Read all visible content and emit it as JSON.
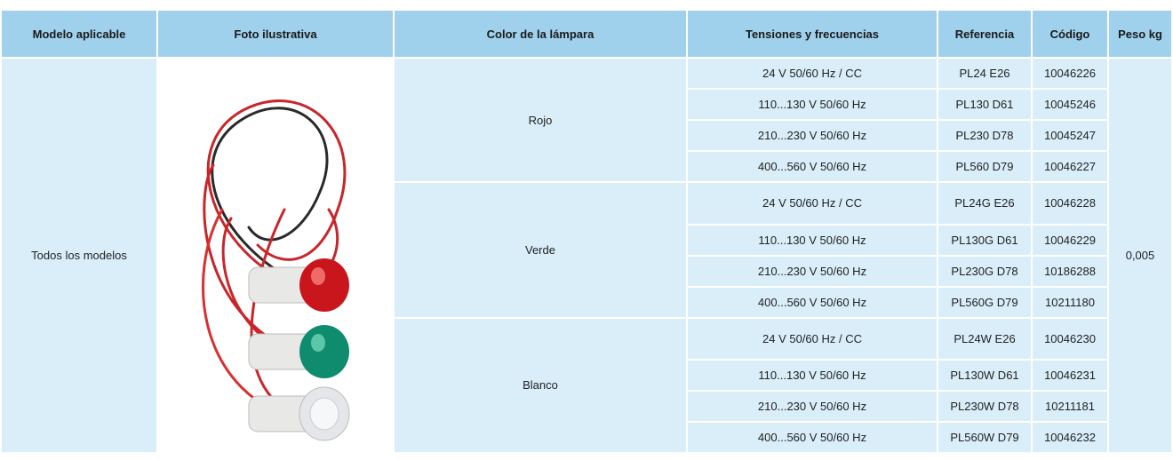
{
  "table": {
    "headers": [
      "Modelo aplicable",
      "Foto ilustrativa",
      "Color de la lámpara",
      "Tensiones y frecuencias",
      "Referencia",
      "Código",
      "Peso kg"
    ],
    "model": "Todos los modelos",
    "weight": "0,005",
    "groups": [
      {
        "color": "Rojo",
        "rows": [
          [
            "24 V 50/60 Hz / CC",
            "PL24 E26",
            "10046226"
          ],
          [
            "110...130 V 50/60 Hz",
            "PL130 D61",
            "10045246"
          ],
          [
            "210...230 V 50/60 Hz",
            "PL230 D78",
            "10045247"
          ],
          [
            "400...560 V 50/60 Hz",
            "PL560 D79",
            "10046227"
          ]
        ]
      },
      {
        "color": "Verde",
        "rows": [
          [
            "24 V 50/60 Hz / CC",
            "PL24G E26",
            "10046228"
          ],
          [
            "110...130 V 50/60 Hz",
            "PL130G D61",
            "10046229"
          ],
          [
            "210...230 V 50/60 Hz",
            "PL230G D78",
            "10186288"
          ],
          [
            "400...560 V 50/60 Hz",
            "PL560G D79",
            "10211180"
          ]
        ]
      },
      {
        "color": "Blanco",
        "rows": [
          [
            "24 V 50/60 Hz / CC",
            "PL24W E26",
            "10046230"
          ],
          [
            "110...130 V 50/60 Hz",
            "PL130W D61",
            "10046231"
          ],
          [
            "210...230 V 50/60 Hz",
            "PL230W D78",
            "10211181"
          ],
          [
            "400...560 V 50/60 Hz",
            "PL560W D79",
            "10046232"
          ]
        ]
      }
    ]
  }
}
